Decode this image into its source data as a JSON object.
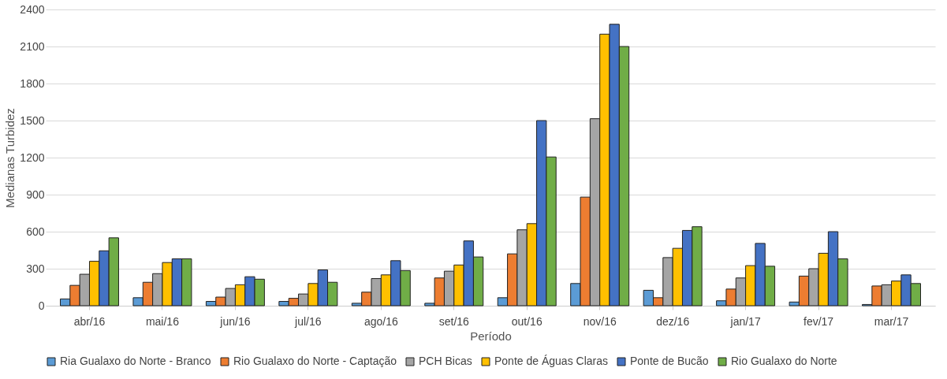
{
  "chart_data": {
    "type": "bar",
    "xlabel": "Período",
    "ylabel": "Medianas Turbidez",
    "categories": [
      "abr/16",
      "mai/16",
      "jun/16",
      "jul/16",
      "ago/16",
      "set/16",
      "out/16",
      "nov/16",
      "dez/16",
      "jan/17",
      "fev/17",
      "mar/17"
    ],
    "series": [
      {
        "name": "Ria Gualaxo do Norte - Branco",
        "color": "#5b9bd5",
        "values": [
          55,
          65,
          35,
          35,
          20,
          20,
          65,
          180,
          125,
          40,
          30,
          10
        ]
      },
      {
        "name": "Rio Gualaxo do Norte - Captação",
        "color": "#ed7d31",
        "values": [
          165,
          190,
          70,
          60,
          110,
          225,
          420,
          880,
          65,
          135,
          240,
          160
        ]
      },
      {
        "name": "PCH Bicas",
        "color": "#a5a5a5",
        "values": [
          255,
          260,
          140,
          95,
          220,
          280,
          615,
          1515,
          390,
          225,
          300,
          170
        ]
      },
      {
        "name": "Ponte de Águas Claras",
        "color": "#ffc000",
        "values": [
          360,
          350,
          170,
          180,
          250,
          330,
          665,
          2200,
          465,
          325,
          425,
          200
        ]
      },
      {
        "name": "Ponte de Bucão",
        "color": "#4472c4",
        "values": [
          445,
          380,
          235,
          290,
          365,
          525,
          1500,
          2280,
          610,
          505,
          600,
          250
        ]
      },
      {
        "name": "Rio Gualaxo do Norte",
        "color": "#70ad47",
        "values": [
          550,
          380,
          215,
          190,
          285,
          395,
          1205,
          2100,
          640,
          320,
          380,
          180
        ]
      }
    ],
    "ylim": [
      0,
      2400
    ],
    "yticks": [
      0,
      300,
      600,
      900,
      1200,
      1500,
      1800,
      2100,
      2400
    ],
    "grid": "y",
    "legend": "bottom"
  }
}
